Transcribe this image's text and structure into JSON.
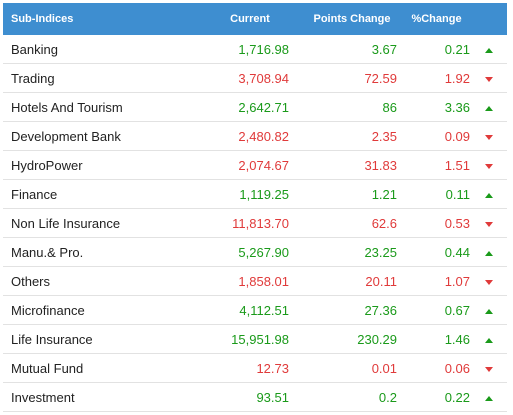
{
  "table": {
    "headers": {
      "name": "Sub-Indices",
      "current": "Current",
      "points_change": "Points Change",
      "percent_change": "%Change"
    },
    "rows": [
      {
        "name": "Banking",
        "current": "1,716.98",
        "points": "3.67",
        "pct": "0.21",
        "dir": "up"
      },
      {
        "name": "Trading",
        "current": "3,708.94",
        "points": "72.59",
        "pct": "1.92",
        "dir": "down"
      },
      {
        "name": "Hotels And Tourism",
        "current": "2,642.71",
        "points": "86",
        "pct": "3.36",
        "dir": "up"
      },
      {
        "name": "Development Bank",
        "current": "2,480.82",
        "points": "2.35",
        "pct": "0.09",
        "dir": "down"
      },
      {
        "name": "HydroPower",
        "current": "2,074.67",
        "points": "31.83",
        "pct": "1.51",
        "dir": "down"
      },
      {
        "name": "Finance",
        "current": "1,119.25",
        "points": "1.21",
        "pct": "0.11",
        "dir": "up"
      },
      {
        "name": "Non Life Insurance",
        "current": "11,813.70",
        "points": "62.6",
        "pct": "0.53",
        "dir": "down"
      },
      {
        "name": "Manu.& Pro.",
        "current": "5,267.90",
        "points": "23.25",
        "pct": "0.44",
        "dir": "up"
      },
      {
        "name": "Others",
        "current": "1,858.01",
        "points": "20.11",
        "pct": "1.07",
        "dir": "down"
      },
      {
        "name": "Microfinance",
        "current": "4,112.51",
        "points": "27.36",
        "pct": "0.67",
        "dir": "up"
      },
      {
        "name": "Life Insurance",
        "current": "15,951.98",
        "points": "230.29",
        "pct": "1.46",
        "dir": "up"
      },
      {
        "name": "Mutual Fund",
        "current": "12.73",
        "points": "0.01",
        "pct": "0.06",
        "dir": "down"
      },
      {
        "name": "Investment",
        "current": "93.51",
        "points": "0.2",
        "pct": "0.22",
        "dir": "up"
      }
    ]
  },
  "colors": {
    "header_bg": "#3e8ed0",
    "up": "#1a9a1a",
    "down": "#e03a3a"
  },
  "icons": {
    "up": "caret-up-icon",
    "down": "caret-down-icon"
  }
}
